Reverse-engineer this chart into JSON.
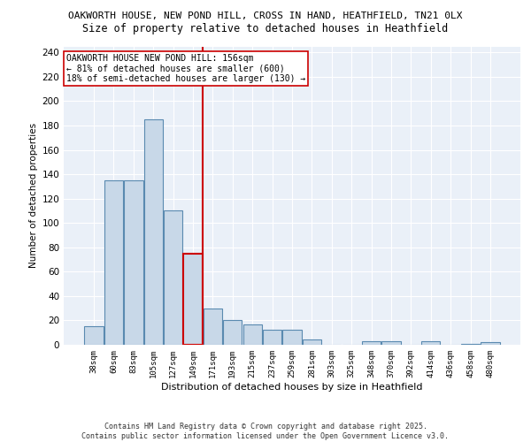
{
  "title1": "OAKWORTH HOUSE, NEW POND HILL, CROSS IN HAND, HEATHFIELD, TN21 0LX",
  "title2": "Size of property relative to detached houses in Heathfield",
  "xlabel": "Distribution of detached houses by size in Heathfield",
  "ylabel": "Number of detached properties",
  "categories": [
    "38sqm",
    "60sqm",
    "83sqm",
    "105sqm",
    "127sqm",
    "149sqm",
    "171sqm",
    "193sqm",
    "215sqm",
    "237sqm",
    "259sqm",
    "281sqm",
    "303sqm",
    "325sqm",
    "348sqm",
    "370sqm",
    "392sqm",
    "414sqm",
    "436sqm",
    "458sqm",
    "480sqm"
  ],
  "values": [
    15,
    135,
    135,
    185,
    110,
    75,
    30,
    20,
    17,
    12,
    12,
    4,
    0,
    0,
    3,
    3,
    0,
    3,
    0,
    1,
    2
  ],
  "bar_color": "#c8d8e8",
  "bar_edge_color": "#5a8ab0",
  "highlight_index": 5,
  "highlight_edge_color": "#cc0000",
  "vline_color": "#cc0000",
  "annotation_title": "OAKWORTH HOUSE NEW POND HILL: 156sqm",
  "annotation_line1": "← 81% of detached houses are smaller (600)",
  "annotation_line2": "18% of semi-detached houses are larger (130) →",
  "annotation_box_color": "#ffffff",
  "annotation_box_edge": "#cc0000",
  "background_color": "#eaf0f8",
  "ylim": [
    0,
    245
  ],
  "yticks": [
    0,
    20,
    40,
    60,
    80,
    100,
    120,
    140,
    160,
    180,
    200,
    220,
    240
  ],
  "footer1": "Contains HM Land Registry data © Crown copyright and database right 2025.",
  "footer2": "Contains public sector information licensed under the Open Government Licence v3.0."
}
